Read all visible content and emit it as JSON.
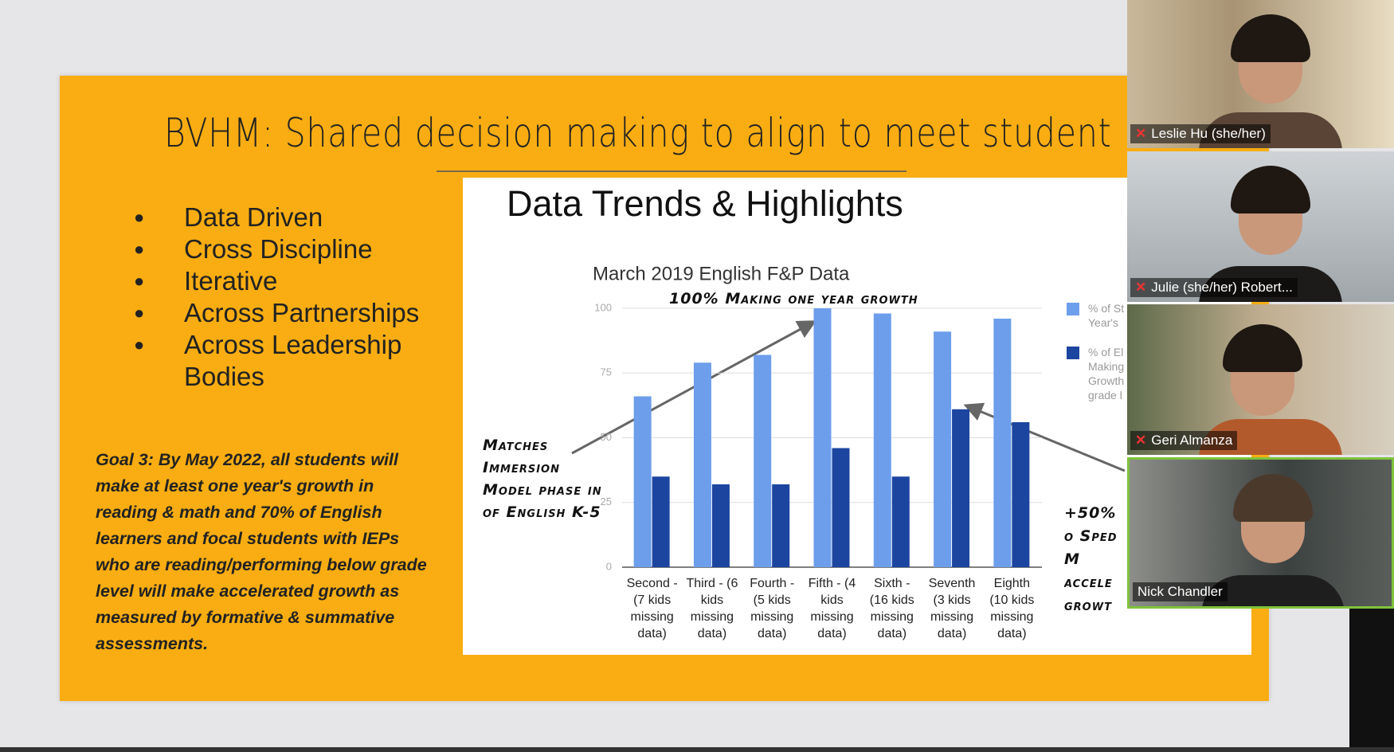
{
  "slide": {
    "title": "BVHM: Shared decision making to align to meet student",
    "bullets": [
      "Data Driven",
      "Cross Discipline",
      "Iterative",
      "Across Partnerships",
      "Across Leadership Bodies"
    ],
    "goal": "Goal 3:  By May 2022, all students will make at least one year's growth in reading & math and 70% of English learners and focal students with IEPs who are reading/performing below grade level will make accelerated growth as measured by formative & summative assessments."
  },
  "chart_data": {
    "type": "bar",
    "title": "Data Trends & Highlights",
    "subtitle": "March 2019 English F&P Data",
    "categories": [
      "Second - (7 kids missing data)",
      "Third - (6 kids missing data)",
      "Fourth - (5 kids missing data)",
      "Fifth - (4 kids missing data)",
      "Sixth - (16 kids missing data)",
      "Seventh (3 kids missing data)",
      "Eighth (10 kids missing data)"
    ],
    "series": [
      {
        "name": "% of St Year's",
        "color": "#6d9eeb",
        "values": [
          66,
          79,
          82,
          100,
          98,
          91,
          96
        ]
      },
      {
        "name": "% of El Making Growth grade l",
        "color": "#1c45a0",
        "values": [
          35,
          32,
          32,
          46,
          35,
          61,
          56
        ]
      }
    ],
    "ylim": [
      0,
      100
    ],
    "yticks": [
      0,
      25,
      50,
      75,
      100
    ],
    "grid": true,
    "annotations": [
      "100% Making one year growth",
      "Matches Immersion Model phase in of English K-5",
      "+50% o Sped M accele growt"
    ]
  },
  "participants": [
    "Leslie Hu (she/her)",
    "Julie (she/her) Robert...",
    "Geri Almanza",
    "Nick Chandler"
  ]
}
